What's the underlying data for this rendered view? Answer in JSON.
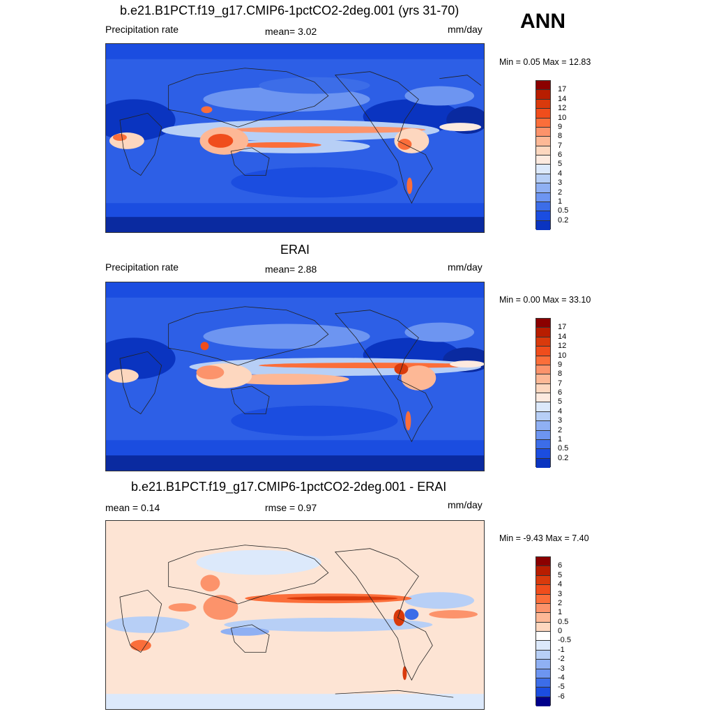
{
  "season": "ANN",
  "panels": [
    {
      "title": "b.e21.B1PCT.f19_g17.CMIP6-1pctCO2-2deg.001 (yrs 31-70)",
      "left_label": "Precipitation rate",
      "center_label": "mean=   3.02",
      "units": "mm/day",
      "minmax": "Min =   0.05 Max =  12.83",
      "colorbar": {
        "ticks": [
          "17",
          "14",
          "12",
          "10",
          "9",
          "8",
          "7",
          "6",
          "5",
          "4",
          "3",
          "2",
          "1",
          "0.5",
          "0.2"
        ],
        "colors": [
          "#8b0000",
          "#b81d00",
          "#d93a0c",
          "#f04d1c",
          "#fb6e3a",
          "#fc936b",
          "#fdb896",
          "#fdd7bf",
          "#fdeadf",
          "#dce9fb",
          "#b7cff6",
          "#8fb0f3",
          "#6d95f1",
          "#3c6de8",
          "#1b4de0",
          "#0a34c0"
        ]
      }
    },
    {
      "title": "ERAI",
      "left_label": "Precipitation rate",
      "center_label": "mean=   2.88",
      "units": "mm/day",
      "minmax": "Min =   0.00 Max =  33.10",
      "colorbar": {
        "ticks": [
          "17",
          "14",
          "12",
          "10",
          "9",
          "8",
          "7",
          "6",
          "5",
          "4",
          "3",
          "2",
          "1",
          "0.5",
          "0.2"
        ],
        "colors": [
          "#8b0000",
          "#b81d00",
          "#d93a0c",
          "#f04d1c",
          "#fb6e3a",
          "#fc936b",
          "#fdb896",
          "#fdd7bf",
          "#fdeadf",
          "#dce9fb",
          "#b7cff6",
          "#8fb0f3",
          "#6d95f1",
          "#3c6de8",
          "#1b4de0",
          "#0a34c0"
        ]
      }
    },
    {
      "title": "b.e21.B1PCT.f19_g17.CMIP6-1pctCO2-2deg.001 - ERAI",
      "left_label": "mean =   0.14",
      "center_label": "rmse =   0.97",
      "units": "mm/day",
      "minmax": "Min =  -9.43 Max =   7.40",
      "colorbar": {
        "ticks": [
          "6",
          "5",
          "4",
          "3",
          "2",
          "1",
          "0.5",
          "0",
          "-0.5",
          "-1",
          "-2",
          "-3",
          "-4",
          "-5",
          "-6"
        ],
        "colors": [
          "#8b0000",
          "#b81d00",
          "#d93a0c",
          "#f04d1c",
          "#fb6e3a",
          "#fc936b",
          "#fdb896",
          "#fdd7bf",
          "#ffffff",
          "#dce9fb",
          "#b7cff6",
          "#8fb0f3",
          "#6d95f1",
          "#3c6de8",
          "#1b4de0",
          "#00008b"
        ]
      }
    }
  ]
}
